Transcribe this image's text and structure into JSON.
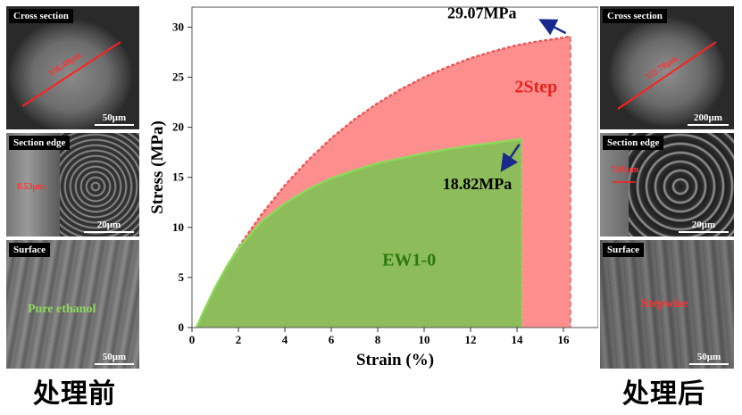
{
  "chart_data": {
    "type": "area",
    "xlabel": "Strain (%)",
    "ylabel": "Stress (MPa)",
    "xlim": [
      0,
      17.5
    ],
    "ylim": [
      0,
      32
    ],
    "xticks": [
      0,
      2,
      4,
      6,
      8,
      10,
      12,
      14,
      16
    ],
    "yticks": [
      0,
      5,
      10,
      15,
      20,
      25,
      30
    ],
    "series": [
      {
        "name": "2Step",
        "color": "#ff8f8f",
        "edge": "#e85a5a",
        "break_strain": 16.3,
        "x": [
          0.2,
          0.5,
          1,
          1.5,
          2,
          3,
          4,
          5,
          6,
          7,
          8,
          9,
          10,
          11,
          12,
          13,
          14,
          15,
          16,
          16.3
        ],
        "y": [
          0,
          1.5,
          3.8,
          6.0,
          8.0,
          11.3,
          14.2,
          16.7,
          18.9,
          20.8,
          22.4,
          23.8,
          25.0,
          26.0,
          26.9,
          27.6,
          28.2,
          28.6,
          28.95,
          29.07
        ]
      },
      {
        "name": "EW1-0",
        "color": "#8dbc5a",
        "edge": "#8cd95a",
        "break_strain": 14.2,
        "x": [
          0.2,
          0.5,
          1,
          1.5,
          2,
          3,
          4,
          5,
          6,
          7,
          8,
          9,
          10,
          11,
          12,
          13,
          14,
          14.2
        ],
        "y": [
          0,
          1.6,
          4.0,
          6.1,
          7.9,
          10.6,
          12.4,
          13.8,
          14.9,
          15.7,
          16.4,
          16.9,
          17.4,
          17.8,
          18.15,
          18.45,
          18.75,
          18.82
        ]
      }
    ],
    "annotations": [
      {
        "text": "29.07MPa",
        "x": 11.0,
        "y": 30.9
      },
      {
        "text": "18.82MPa",
        "x": 10.8,
        "y": 13.8
      },
      {
        "text": "2Step",
        "x": 13.9,
        "y": 23.5
      },
      {
        "text": "EW1-0",
        "x": 8.2,
        "y": 6.2
      }
    ],
    "arrows": [
      {
        "from": [
          16.1,
          29.4
        ],
        "to": [
          15.1,
          30.6
        ]
      },
      {
        "from": [
          14.1,
          18.3
        ],
        "to": [
          13.4,
          15.9
        ]
      }
    ],
    "colors": {
      "arrow": "#1a2a8c",
      "label_red": "#e8231d",
      "label_green": "#2b7a0b"
    }
  },
  "left_column": {
    "caption": "处理前",
    "panels": [
      {
        "tag": "Cross section",
        "scale": "50μm",
        "note": "156.48μm"
      },
      {
        "tag": "Section edge",
        "scale": "20μm",
        "note": "0.53μm"
      },
      {
        "tag": "Surface",
        "scale": "50μm",
        "note": "Pure ethanol"
      }
    ]
  },
  "right_column": {
    "caption": "处理后",
    "panels": [
      {
        "tag": "Cross section",
        "scale": "200μm",
        "note": "322.78μm"
      },
      {
        "tag": "Section edge",
        "scale": "20μm",
        "note": "7.69μm"
      },
      {
        "tag": "Surface",
        "scale": "50μm",
        "note": "Stepwise"
      }
    ]
  }
}
